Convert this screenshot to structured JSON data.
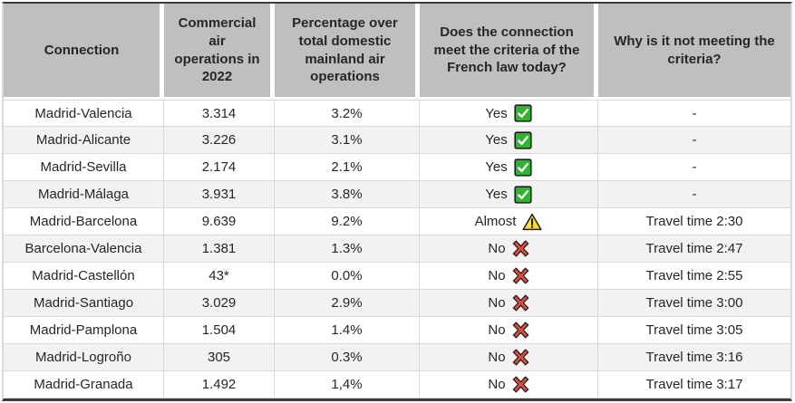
{
  "table": {
    "headers": [
      "Connection",
      "Commercial air operations in 2022",
      "Percentage over total domestic mainland air operations",
      "Does the connection meet the criteria of the French law today?",
      "Why is it not meeting the criteria?"
    ],
    "rows": [
      {
        "connection": "Madrid-Valencia",
        "operations": "3.314",
        "percentage": "3.2%",
        "criteria": "Yes",
        "icon": "green-check",
        "reason": "-"
      },
      {
        "connection": "Madrid-Alicante",
        "operations": "3.226",
        "percentage": "3.1%",
        "criteria": "Yes",
        "icon": "green-check",
        "reason": "-"
      },
      {
        "connection": "Madrid-Sevilla",
        "operations": "2.174",
        "percentage": "2.1%",
        "criteria": "Yes",
        "icon": "green-check",
        "reason": "-"
      },
      {
        "connection": "Madrid-Málaga",
        "operations": "3.931",
        "percentage": "3.8%",
        "criteria": "Yes",
        "icon": "green-check",
        "reason": "-"
      },
      {
        "connection": "Madrid-Barcelona",
        "operations": "9.639",
        "percentage": "9.2%",
        "criteria": "Almost",
        "icon": "warning",
        "reason": "Travel time 2:30"
      },
      {
        "connection": "Barcelona-Valencia",
        "operations": "1.381",
        "percentage": "1.3%",
        "criteria": "No",
        "icon": "red-cross",
        "reason": "Travel time 2:47"
      },
      {
        "connection": "Madrid-Castellón",
        "operations": "43*",
        "percentage": "0.0%",
        "criteria": "No",
        "icon": "red-cross",
        "reason": "Travel time 2:55"
      },
      {
        "connection": "Madrid-Santiago",
        "operations": "3.029",
        "percentage": "2.9%",
        "criteria": "No",
        "icon": "red-cross",
        "reason": "Travel time 3:00"
      },
      {
        "connection": "Madrid-Pamplona",
        "operations": "1.504",
        "percentage": "1.4%",
        "criteria": "No",
        "icon": "red-cross",
        "reason": "Travel time 3:05"
      },
      {
        "connection": "Madrid-Logroño",
        "operations": "305",
        "percentage": "0.3%",
        "criteria": "No",
        "icon": "red-cross",
        "reason": "Travel time 3:16"
      },
      {
        "connection": "Madrid-Granada",
        "operations": "1.492",
        "percentage": "1,4%",
        "criteria": "No",
        "icon": "red-cross",
        "reason": "Travel time 3:17"
      }
    ]
  },
  "chart_data": {
    "type": "table",
    "columns": [
      "Connection",
      "Commercial air operations in 2022",
      "Percentage over total domestic mainland air operations",
      "Does the connection meet the criteria of the French law today?",
      "Why is it not meeting the criteria?"
    ],
    "rows": [
      [
        "Madrid-Valencia",
        "3.314",
        "3.2%",
        "Yes",
        "-"
      ],
      [
        "Madrid-Alicante",
        "3.226",
        "3.1%",
        "Yes",
        "-"
      ],
      [
        "Madrid-Sevilla",
        "2.174",
        "2.1%",
        "Yes",
        "-"
      ],
      [
        "Madrid-Málaga",
        "3.931",
        "3.8%",
        "Yes",
        "-"
      ],
      [
        "Madrid-Barcelona",
        "9.639",
        "9.2%",
        "Almost",
        "Travel time 2:30"
      ],
      [
        "Barcelona-Valencia",
        "1.381",
        "1.3%",
        "No",
        "Travel time 2:47"
      ],
      [
        "Madrid-Castellón",
        "43*",
        "0.0%",
        "No",
        "Travel time 2:55"
      ],
      [
        "Madrid-Santiago",
        "3.029",
        "2.9%",
        "No",
        "Travel time 3:00"
      ],
      [
        "Madrid-Pamplona",
        "1.504",
        "1.4%",
        "No",
        "Travel time 3:05"
      ],
      [
        "Madrid-Logroño",
        "305",
        "0.3%",
        "No",
        "Travel time 3:16"
      ],
      [
        "Madrid-Granada",
        "1.492",
        "1,4%",
        "No",
        "Travel time 3:17"
      ]
    ]
  },
  "colors": {
    "header_bg": "#BFBFBF",
    "row_bg": "#FFFFFF",
    "row_alt_bg": "#F2F2F2",
    "grid_line": "#D9D9D9",
    "outer_dark": "#3B3B3B",
    "text": "#262626",
    "check_green": "#2DB52D",
    "warning_yellow": "#FFDD33",
    "cross_red": "#DD4B3E"
  }
}
